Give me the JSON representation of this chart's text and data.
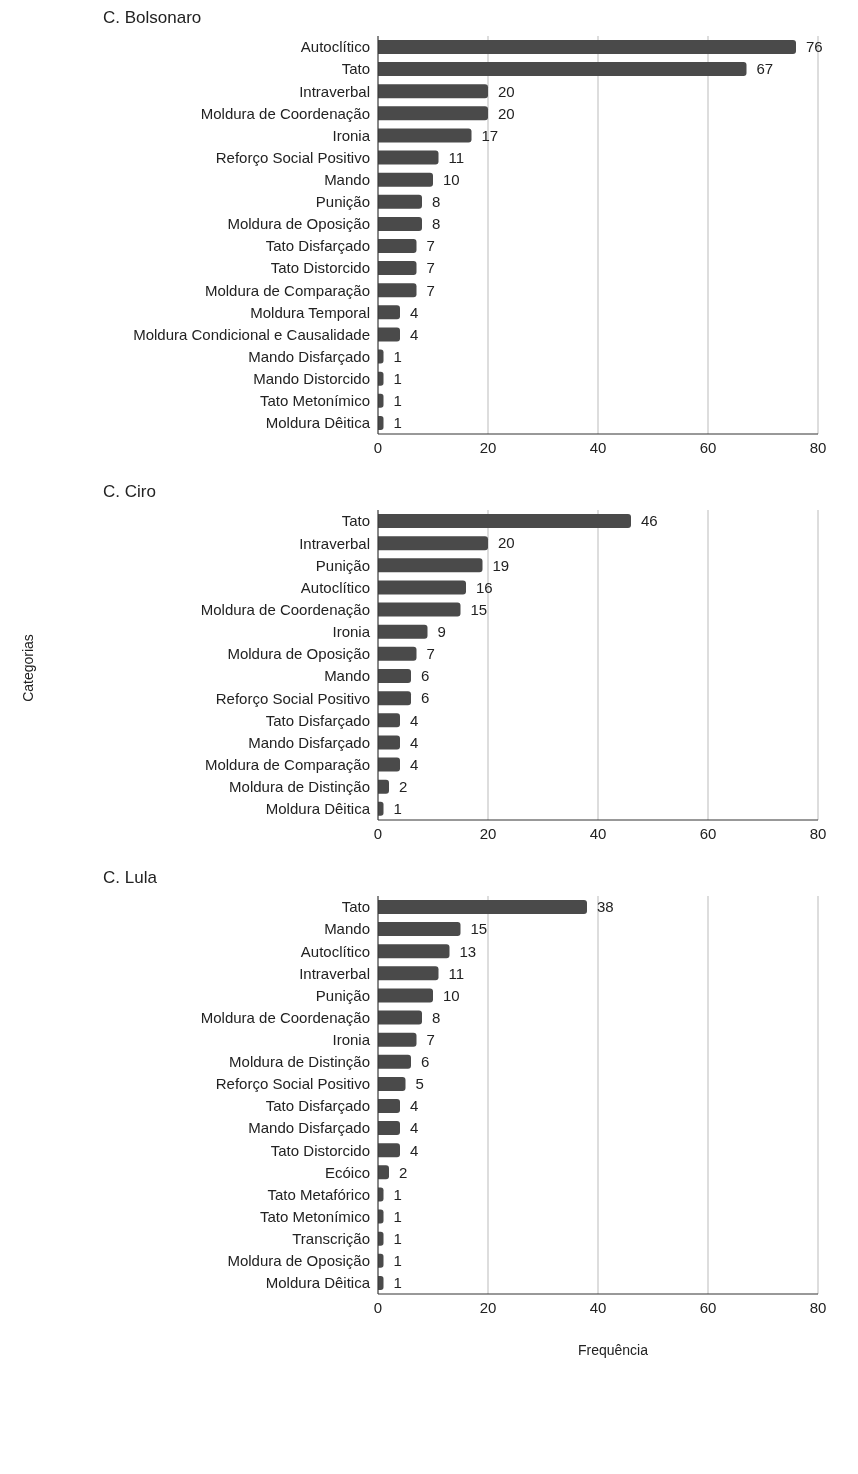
{
  "chart_data": [
    {
      "type": "bar",
      "orientation": "horizontal",
      "title": "C. Bolsonaro",
      "categories": [
        "Autoclítico",
        "Tato",
        "Intraverbal",
        "Moldura de Coordenação",
        "Ironia",
        "Reforço Social Positivo",
        "Mando",
        "Punição",
        "Moldura de Oposição",
        "Tato Disfarçado",
        "Tato Distorcido",
        "Moldura de Comparação",
        "Moldura Temporal",
        "Moldura Condicional e Causalidade",
        "Mando Disfarçado",
        "Mando Distorcido",
        "Tato Metonímico",
        "Moldura Dêitica"
      ],
      "values": [
        76,
        67,
        20,
        20,
        17,
        11,
        10,
        8,
        8,
        7,
        7,
        7,
        4,
        4,
        1,
        1,
        1,
        1
      ],
      "color": "#4a4a4a",
      "xlim": [
        0,
        80
      ],
      "xticks": [
        0,
        20,
        40,
        60,
        80
      ],
      "grid": "x",
      "data_labels": true
    },
    {
      "type": "bar",
      "orientation": "horizontal",
      "title": "C. Ciro",
      "ylabel": "Categorias",
      "categories": [
        "Tato",
        "Intraverbal",
        "Punição",
        "Autoclítico",
        "Moldura de Coordenação",
        "Ironia",
        "Moldura de Oposição",
        "Mando",
        "Reforço Social Positivo",
        "Tato Disfarçado",
        "Mando Disfarçado",
        "Moldura de Comparação",
        "Moldura de Distinção",
        "Moldura Dêitica"
      ],
      "values": [
        46,
        20,
        19,
        16,
        15,
        9,
        7,
        6,
        6,
        4,
        4,
        4,
        2,
        1
      ],
      "color": "#4a4a4a",
      "xlim": [
        0,
        80
      ],
      "xticks": [
        0,
        20,
        40,
        60,
        80
      ],
      "grid": "x",
      "data_labels": true
    },
    {
      "type": "bar",
      "orientation": "horizontal",
      "title": "C. Lula",
      "xlabel": "Frequência",
      "categories": [
        "Tato",
        "Mando",
        "Autoclítico",
        "Intraverbal",
        "Punição",
        "Moldura de Coordenação",
        "Ironia",
        "Moldura de Distinção",
        "Reforço Social Positivo",
        "Tato Disfarçado",
        "Mando Disfarçado",
        "Tato Distorcido",
        "Ecóico",
        "Tato Metafórico",
        "Tato Metonímico",
        "Transcrição",
        "Moldura de Oposição",
        "Moldura Dêitica"
      ],
      "values": [
        38,
        15,
        13,
        11,
        10,
        8,
        7,
        6,
        5,
        4,
        4,
        4,
        2,
        1,
        1,
        1,
        1,
        1
      ],
      "color": "#4a4a4a",
      "xlim": [
        0,
        80
      ],
      "xticks": [
        0,
        20,
        40,
        60,
        80
      ],
      "grid": "x",
      "data_labels": true
    }
  ]
}
